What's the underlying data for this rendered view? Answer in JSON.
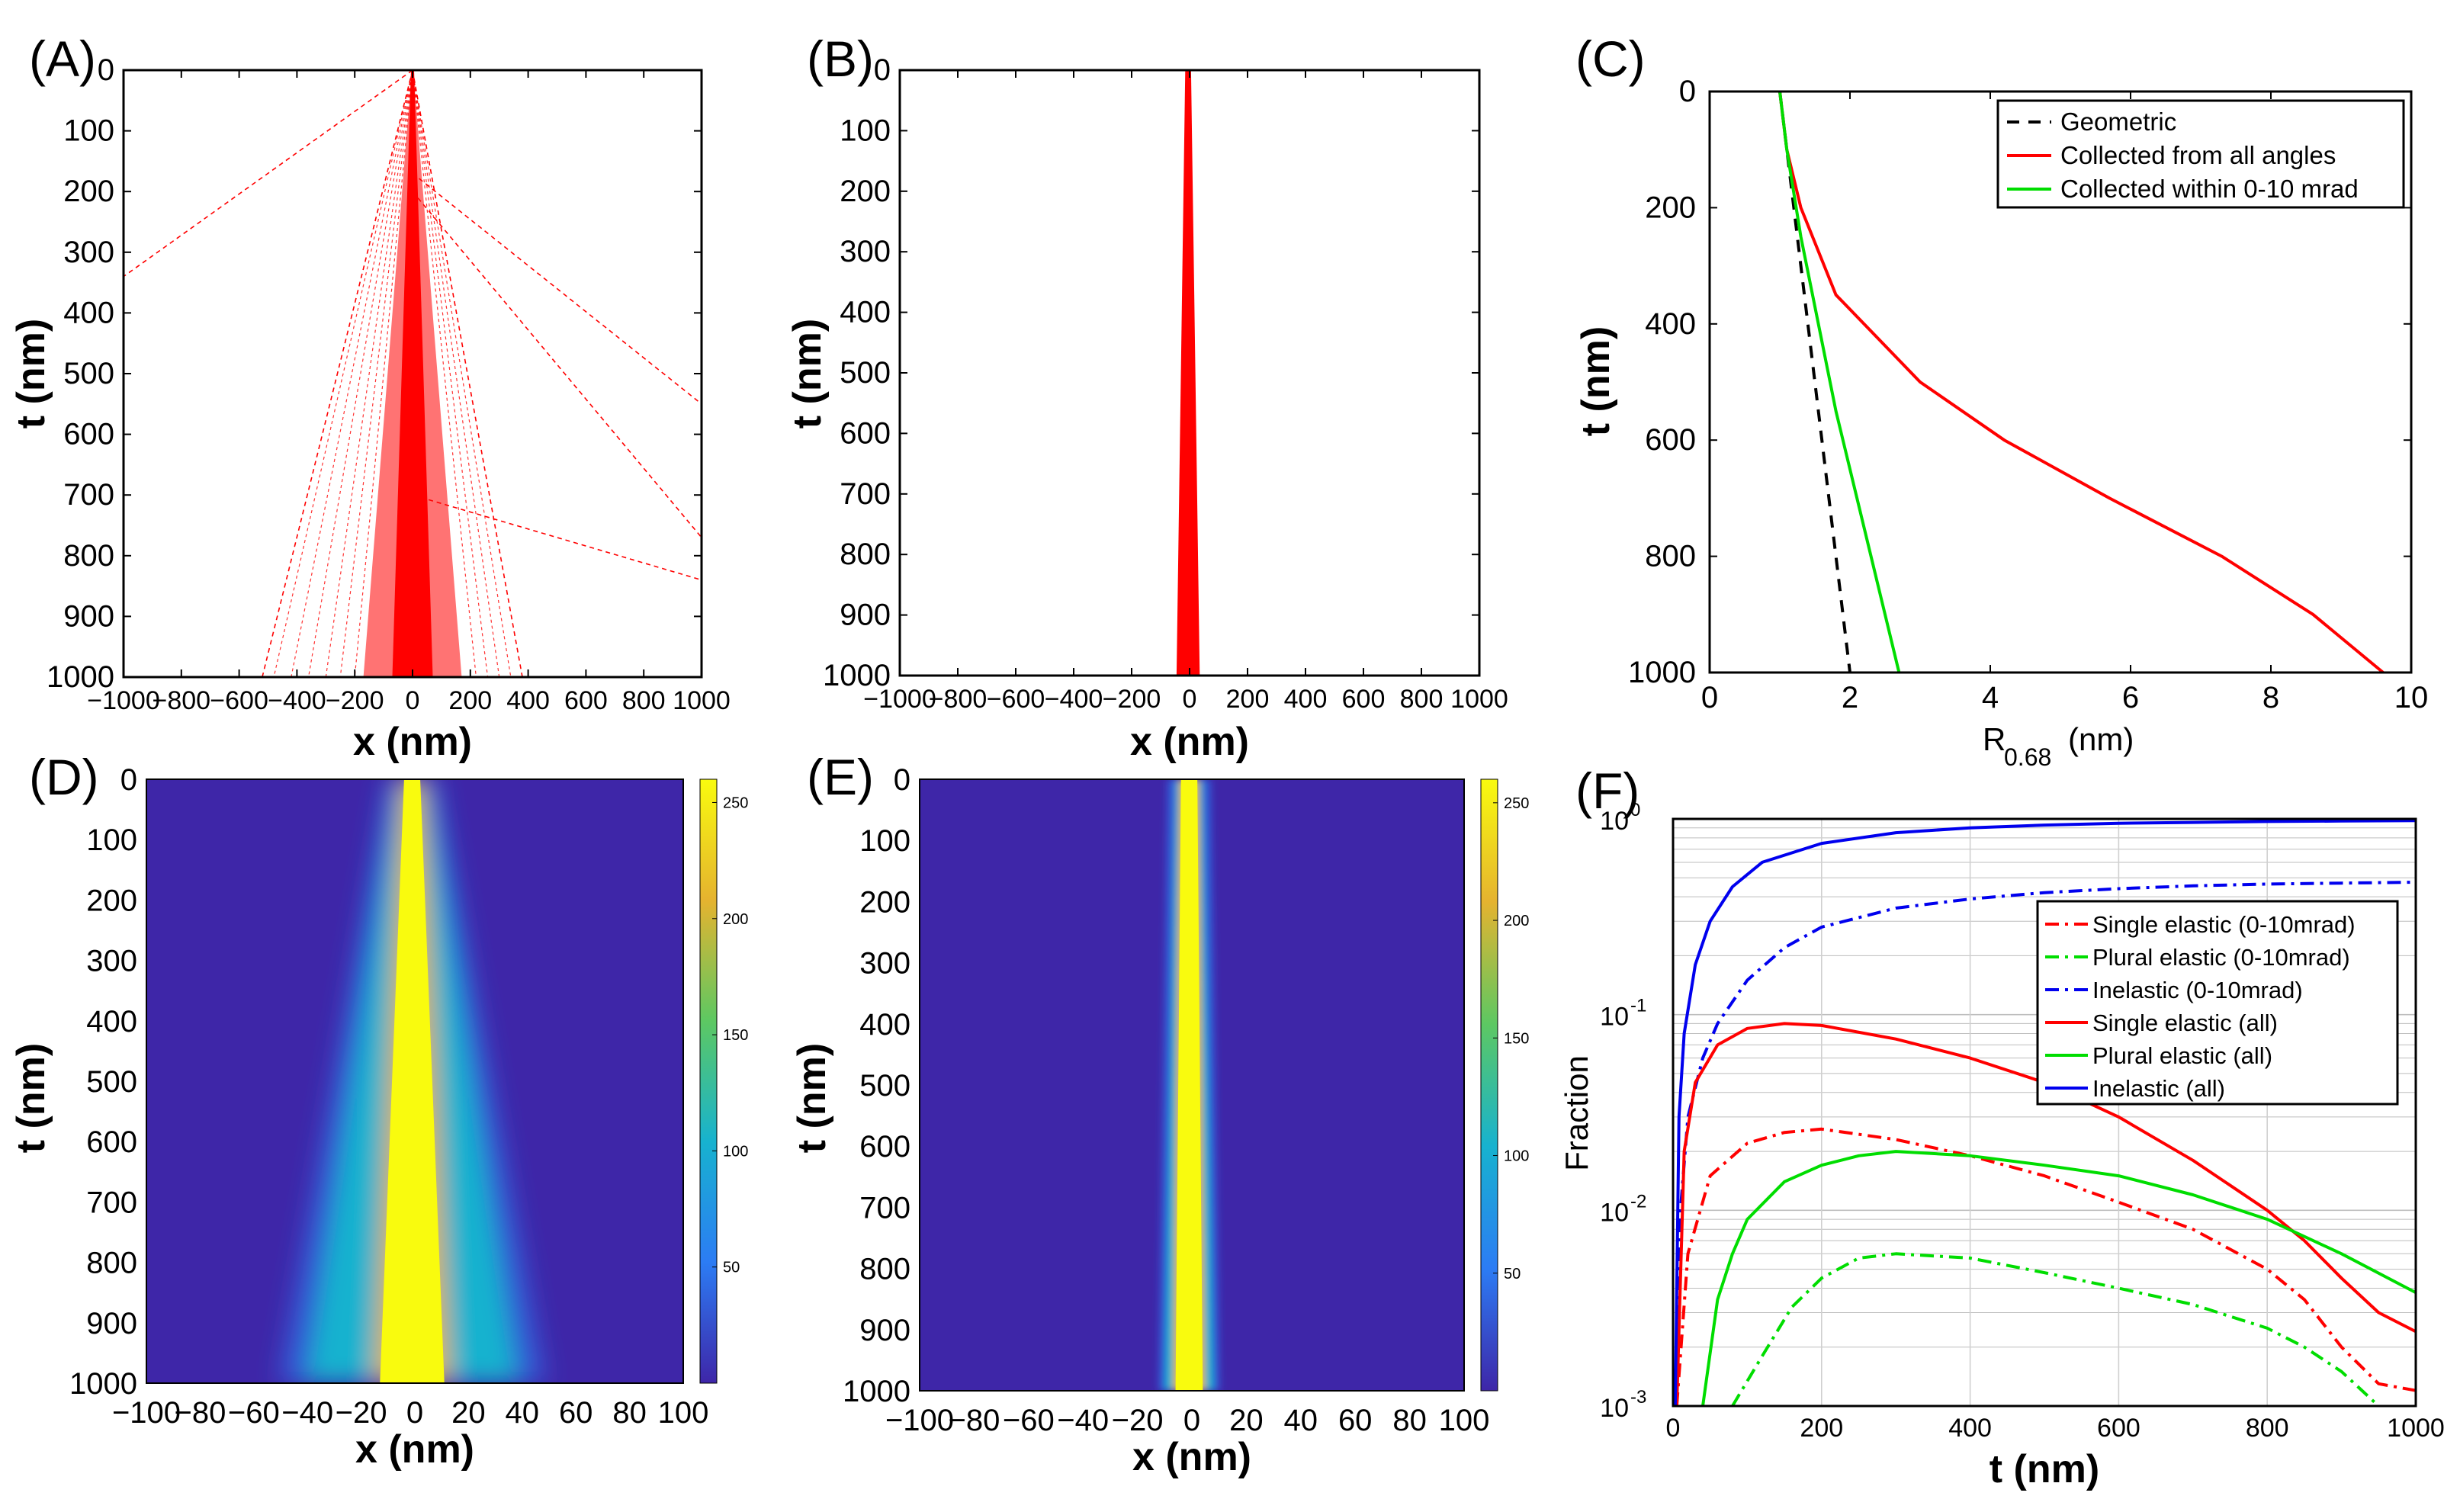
{
  "chart_data": [
    {
      "panel": "(A)",
      "type": "line",
      "xlabel": "x (nm)",
      "ylabel": "t (nm)",
      "xlim": [
        -1000,
        1000
      ],
      "ylim": [
        1000,
        0
      ],
      "xticks": [
        "−1000",
        "−800",
        "−600",
        "−400",
        "−200",
        "0",
        "200",
        "400",
        "600",
        "800",
        "1000"
      ],
      "yticks": [
        "0",
        "100",
        "200",
        "300",
        "400",
        "500",
        "600",
        "700",
        "800",
        "900",
        "1000"
      ],
      "series_color": "#ff0000",
      "trajectories": [
        {
          "x": [
            0,
            -1000
          ],
          "y": [
            0,
            340
          ]
        },
        {
          "x": [
            0,
            1000
          ],
          "y": [
            170,
            550
          ]
        },
        {
          "x": [
            0,
            1000
          ],
          "y": [
            200,
            770
          ]
        },
        {
          "x": [
            0,
            1000
          ],
          "y": [
            700,
            840
          ]
        },
        {
          "x": [
            0,
            -520
          ],
          "y": [
            0,
            1000
          ]
        },
        {
          "x": [
            0,
            380
          ],
          "y": [
            0,
            1000
          ]
        }
      ]
    },
    {
      "panel": "(B)",
      "type": "line",
      "xlabel": "x (nm)",
      "ylabel": "t (nm)",
      "xlim": [
        -1000,
        1000
      ],
      "ylim": [
        1000,
        0
      ],
      "xticks": [
        "−1000",
        "−800",
        "−600",
        "−400",
        "−200",
        "0",
        "200",
        "400",
        "600",
        "800",
        "1000"
      ],
      "yticks": [
        "0",
        "100",
        "200",
        "300",
        "400",
        "500",
        "600",
        "700",
        "800",
        "900",
        "1000"
      ],
      "series_color": "#ff0000",
      "beam_halfwidth": {
        "t": [
          0,
          1000
        ],
        "x": [
          10,
          40
        ]
      }
    },
    {
      "panel": "(C)",
      "type": "line",
      "xlabel_main": "R",
      "xlabel_sub": "0.68",
      "xlabel_unit": "(nm)",
      "ylabel": "t (nm)",
      "xlim": [
        0,
        10
      ],
      "ylim": [
        1000,
        0
      ],
      "xticks": [
        "0",
        "2",
        "4",
        "6",
        "8",
        "10"
      ],
      "yticks": [
        "0",
        "200",
        "400",
        "600",
        "800",
        "1000"
      ],
      "series": [
        {
          "name": "Geometric",
          "color": "#000000",
          "style": "dashed",
          "x": [
            1.0,
            2.0
          ],
          "y": [
            0,
            1000
          ]
        },
        {
          "name": "Collected from all angles",
          "color": "#ff0000",
          "style": "solid",
          "x": [
            1.0,
            1.1,
            1.3,
            1.8,
            3.0,
            4.2,
            5.7,
            7.3,
            8.6,
            9.6
          ],
          "y": [
            0,
            100,
            200,
            350,
            500,
            600,
            700,
            800,
            900,
            1000
          ]
        },
        {
          "name": "Collected within 0-10 mrad",
          "color": "#00dd00",
          "style": "solid",
          "x": [
            1.0,
            1.1,
            1.3,
            1.55,
            1.8,
            2.1,
            2.4,
            2.7
          ],
          "y": [
            0,
            100,
            250,
            400,
            550,
            700,
            850,
            1000
          ]
        }
      ]
    },
    {
      "panel": "(D)",
      "type": "heatmap",
      "xlabel": "x (nm)",
      "ylabel": "t (nm)",
      "xlim": [
        -100,
        100
      ],
      "ylim": [
        1000,
        0
      ],
      "xticks": [
        "−100",
        "−80",
        "−60",
        "−40",
        "−20",
        "0",
        "20",
        "40",
        "60",
        "80",
        "100"
      ],
      "yticks": [
        "0",
        "100",
        "200",
        "300",
        "400",
        "500",
        "600",
        "700",
        "800",
        "900",
        "1000"
      ],
      "colorbar_ticks": [
        "250",
        "200",
        "150",
        "100",
        "50"
      ],
      "colorbar_range": [
        0,
        260
      ],
      "core_halfwidth": {
        "t": [
          0,
          1000
        ],
        "x": [
          3,
          12
        ]
      },
      "halo_halfwidth": {
        "t": [
          0,
          1000
        ],
        "x": [
          6,
          40
        ]
      }
    },
    {
      "panel": "(E)",
      "type": "heatmap",
      "xlabel": "x (nm)",
      "ylabel": "t (nm)",
      "xlim": [
        -100,
        100
      ],
      "ylim": [
        1000,
        0
      ],
      "xticks": [
        "−100",
        "−80",
        "−60",
        "−40",
        "−20",
        "0",
        "20",
        "40",
        "60",
        "80",
        "100"
      ],
      "yticks": [
        "0",
        "100",
        "200",
        "300",
        "400",
        "500",
        "600",
        "700",
        "800",
        "900",
        "1000"
      ],
      "colorbar_ticks": [
        "250",
        "200",
        "150",
        "100",
        "50"
      ],
      "colorbar_range": [
        0,
        260
      ],
      "core_halfwidth": {
        "t": [
          0,
          1000
        ],
        "x": [
          3,
          5
        ]
      },
      "halo_halfwidth": {
        "t": [
          0,
          1000
        ],
        "x": [
          5,
          9
        ]
      }
    },
    {
      "panel": "(F)",
      "type": "line",
      "xlabel": "t (nm)",
      "ylabel": "Fraction",
      "xlim": [
        0,
        1000
      ],
      "ylim": [
        0.001,
        1
      ],
      "yscale": "log",
      "grid": true,
      "xticks": [
        "0",
        "200",
        "400",
        "600",
        "800",
        "1000"
      ],
      "yticks": [
        {
          "base": "10",
          "exp": "0"
        },
        {
          "base": "10",
          "exp": "-1"
        },
        {
          "base": "10",
          "exp": "-2"
        },
        {
          "base": "10",
          "exp": "-3"
        }
      ],
      "series": [
        {
          "name": "Single elastic (0-10mrad)",
          "color": "#ff0000",
          "style": "dashdot",
          "x": [
            5,
            20,
            50,
            100,
            150,
            200,
            300,
            400,
            500,
            600,
            700,
            800,
            850,
            900,
            950,
            1000
          ],
          "y": [
            0.001,
            0.006,
            0.015,
            0.022,
            0.025,
            0.026,
            0.023,
            0.019,
            0.015,
            0.011,
            0.008,
            0.005,
            0.0035,
            0.002,
            0.0013,
            0.0012
          ]
        },
        {
          "name": "Plural elastic (0-10mrad)",
          "color": "#00dd00",
          "style": "dashdot",
          "x": [
            80,
            120,
            160,
            200,
            250,
            300,
            400,
            500,
            600,
            700,
            800,
            850,
            900,
            950
          ],
          "y": [
            0.001,
            0.0018,
            0.0032,
            0.0045,
            0.0057,
            0.006,
            0.0057,
            0.0048,
            0.004,
            0.0033,
            0.0025,
            0.002,
            0.0015,
            0.001
          ]
        },
        {
          "name": "Inelastic (0-10mrad)",
          "color": "#0000ee",
          "style": "dashdot",
          "x": [
            5,
            10,
            20,
            40,
            60,
            100,
            150,
            200,
            300,
            400,
            500,
            600,
            700,
            800,
            900,
            1000
          ],
          "y": [
            0.001,
            0.01,
            0.03,
            0.06,
            0.09,
            0.15,
            0.22,
            0.28,
            0.35,
            0.39,
            0.42,
            0.44,
            0.455,
            0.465,
            0.47,
            0.475
          ]
        },
        {
          "name": "Single elastic (all)",
          "color": "#ff0000",
          "style": "solid",
          "x": [
            5,
            15,
            30,
            60,
            100,
            150,
            200,
            300,
            400,
            500,
            600,
            700,
            800,
            850,
            900,
            950,
            1000
          ],
          "y": [
            0.001,
            0.02,
            0.045,
            0.07,
            0.085,
            0.09,
            0.088,
            0.075,
            0.06,
            0.045,
            0.03,
            0.018,
            0.01,
            0.007,
            0.0045,
            0.003,
            0.0024
          ]
        },
        {
          "name": "Plural elastic (all)",
          "color": "#00dd00",
          "style": "solid",
          "x": [
            40,
            60,
            80,
            100,
            150,
            200,
            250,
            300,
            400,
            500,
            600,
            700,
            800,
            900,
            1000
          ],
          "y": [
            0.001,
            0.0035,
            0.006,
            0.009,
            0.014,
            0.017,
            0.019,
            0.02,
            0.019,
            0.017,
            0.015,
            0.012,
            0.009,
            0.006,
            0.0038
          ]
        },
        {
          "name": "Inelastic (all)",
          "color": "#0000ee",
          "style": "solid",
          "x": [
            3,
            8,
            15,
            30,
            50,
            80,
            120,
            200,
            300,
            400,
            500,
            600,
            700,
            800,
            900,
            1000
          ],
          "y": [
            0.001,
            0.03,
            0.08,
            0.18,
            0.3,
            0.45,
            0.6,
            0.75,
            0.85,
            0.9,
            0.93,
            0.95,
            0.96,
            0.97,
            0.975,
            0.98
          ]
        }
      ]
    }
  ]
}
